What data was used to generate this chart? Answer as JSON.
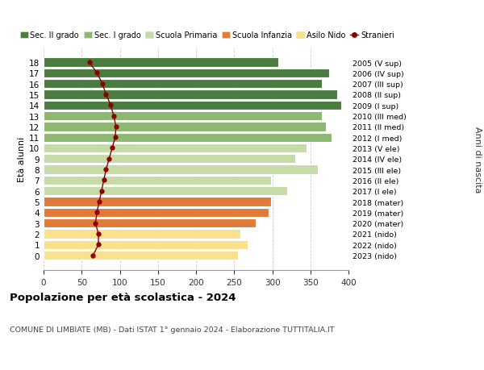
{
  "ages": [
    0,
    1,
    2,
    3,
    4,
    5,
    6,
    7,
    8,
    9,
    10,
    11,
    12,
    13,
    14,
    15,
    16,
    17,
    18
  ],
  "bar_values": [
    255,
    268,
    258,
    278,
    295,
    298,
    320,
    298,
    360,
    330,
    345,
    378,
    370,
    365,
    390,
    385,
    365,
    375,
    308
  ],
  "bar_colors": [
    "#f9e08a",
    "#f9e08a",
    "#f9e08a",
    "#e07b39",
    "#e07b39",
    "#e07b39",
    "#c5dba8",
    "#c5dba8",
    "#c5dba8",
    "#c5dba8",
    "#c5dba8",
    "#8db870",
    "#8db870",
    "#8db870",
    "#4a7c3f",
    "#4a7c3f",
    "#4a7c3f",
    "#4a7c3f",
    "#4a7c3f"
  ],
  "stranieri_values": [
    65,
    72,
    72,
    68,
    70,
    73,
    76,
    79,
    82,
    86,
    90,
    94,
    95,
    92,
    88,
    82,
    77,
    70,
    60
  ],
  "right_labels": [
    "2023 (nido)",
    "2022 (nido)",
    "2021 (nido)",
    "2020 (mater)",
    "2019 (mater)",
    "2018 (mater)",
    "2017 (I ele)",
    "2016 (II ele)",
    "2015 (III ele)",
    "2014 (IV ele)",
    "2013 (V ele)",
    "2012 (I med)",
    "2011 (II med)",
    "2010 (III med)",
    "2009 (I sup)",
    "2008 (II sup)",
    "2007 (III sup)",
    "2006 (IV sup)",
    "2005 (V sup)"
  ],
  "legend_labels": [
    "Sec. II grado",
    "Sec. I grado",
    "Scuola Primaria",
    "Scuola Infanzia",
    "Asilo Nido",
    "Stranieri"
  ],
  "legend_colors": [
    "#4a7c3f",
    "#8db870",
    "#c5dba8",
    "#e07b39",
    "#f9e08a",
    "#8b0000"
  ],
  "ylabel_left": "Età alunni",
  "ylabel_right": "Anni di nascita",
  "title": "Popolazione per età scolastica - 2024",
  "subtitle": "COMUNE DI LIMBIATE (MB) - Dati ISTAT 1° gennaio 2024 - Elaborazione TUTTITALIA.IT",
  "xlim": [
    0,
    400
  ],
  "xticks": [
    0,
    50,
    100,
    150,
    200,
    250,
    300,
    350,
    400
  ],
  "bg_color": "#ffffff",
  "bar_edge_color": "#ffffff",
  "grid_color": "#cccccc"
}
